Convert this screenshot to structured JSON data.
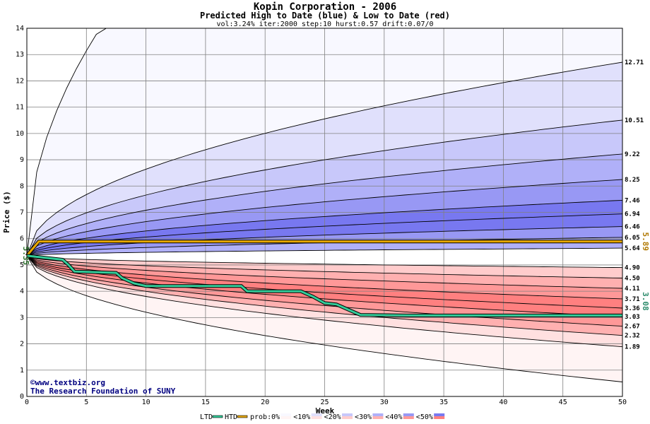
{
  "chart_data": {
    "type": "area",
    "title": "Kopin Corporation - 2006",
    "subtitle": "Predicted High to Date (blue) &  Low to Date (red)",
    "params": "vol:3.24% iter:2000 step:10 hurst:0.57 drift:0.07/0",
    "xlabel": "Week",
    "ylabel": "Price ($)",
    "xlim": [
      0,
      50
    ],
    "ylim": [
      0,
      14
    ],
    "x_ticks": [
      0,
      5,
      10,
      15,
      20,
      25,
      30,
      35,
      40,
      45,
      50
    ],
    "y_ticks": [
      0,
      1,
      2,
      3,
      4,
      5,
      6,
      7,
      8,
      9,
      10,
      11,
      12,
      13,
      14
    ],
    "start_price": 5.35,
    "start_price_label": "5.35",
    "grid": true,
    "high_to_date_percentile_end_values": [
      12.71,
      10.51,
      9.22,
      8.25,
      7.46,
      6.94,
      6.46,
      6.05,
      5.64
    ],
    "high_to_date_percentile_labels": [
      "12.71",
      "10.51",
      "9.22",
      "8.25",
      "7.46",
      "6.94",
      "6.46",
      "6.05",
      "5.64"
    ],
    "low_to_date_percentile_end_values": [
      4.9,
      4.5,
      4.11,
      3.71,
      3.36,
      3.03,
      2.67,
      2.32,
      1.89
    ],
    "low_to_date_percentile_labels": [
      "4.90",
      "4.50",
      "4.11",
      "3.71",
      "3.36",
      "3.03",
      "2.67",
      "2.32",
      "1.89"
    ],
    "htd_series": {
      "name": "HTD",
      "color": "#e8a800",
      "end_value": 5.89,
      "end_label": "5.89",
      "points": [
        [
          0,
          5.35
        ],
        [
          1,
          5.89
        ],
        [
          50,
          5.89
        ]
      ]
    },
    "ltd_series": {
      "name": "LTD",
      "color": "#33cc99",
      "end_value": 3.08,
      "end_label": "3.08",
      "points": [
        [
          0,
          5.35
        ],
        [
          3,
          5.2
        ],
        [
          3.5,
          5.0
        ],
        [
          4,
          4.75
        ],
        [
          7.5,
          4.7
        ],
        [
          8,
          4.5
        ],
        [
          9,
          4.3
        ],
        [
          10,
          4.2
        ],
        [
          18,
          4.2
        ],
        [
          18.5,
          4.0
        ],
        [
          23,
          4.0
        ],
        [
          24,
          3.8
        ],
        [
          25,
          3.55
        ],
        [
          26,
          3.5
        ],
        [
          27,
          3.3
        ],
        [
          28,
          3.1
        ],
        [
          32,
          3.08
        ],
        [
          50,
          3.08
        ]
      ]
    },
    "legend": {
      "placement": "bottom-center",
      "ltd": "LTD",
      "htd": "HTD",
      "prob": "prob:",
      "entries": [
        "0%",
        "<10%",
        "<20%",
        "<30%",
        "<40%",
        "<50%"
      ],
      "blue_colors": [
        "#f8f8ff",
        "#e0e0fc",
        "#c8c8fa",
        "#b0b0f8",
        "#9898f4",
        "#7878f0"
      ],
      "red_colors": [
        "#fff4f4",
        "#ffe0e0",
        "#ffcccc",
        "#ffb0b0",
        "#ff9898",
        "#ff8080"
      ]
    }
  },
  "credit": {
    "site": "©www.textbiz.org",
    "org": "The Research Foundation of SUNY"
  }
}
